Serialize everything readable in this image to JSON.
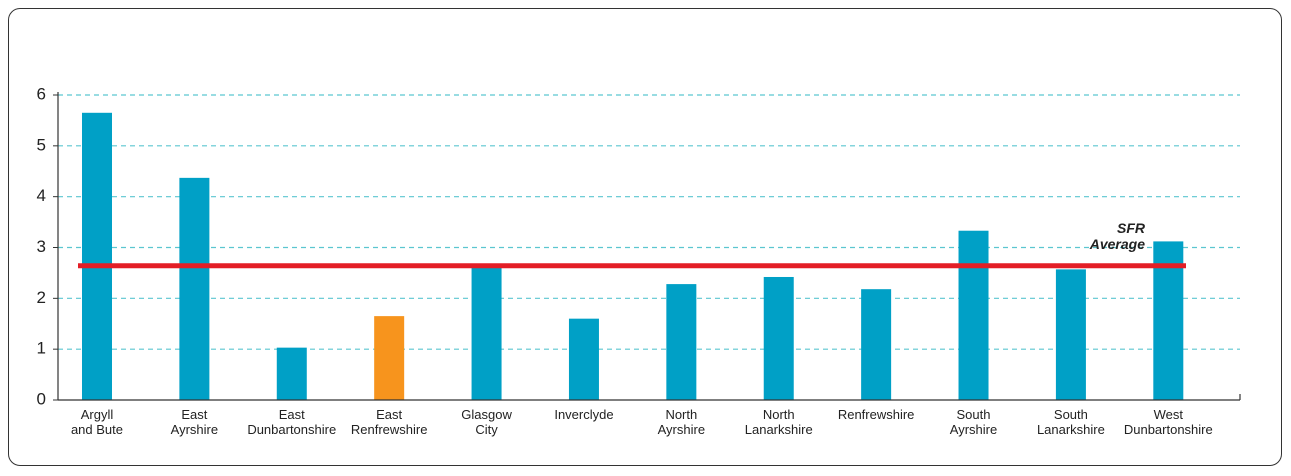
{
  "chart_data": {
    "type": "bar",
    "categories": [
      "Argyll\nand Bute",
      "East\nAyrshire",
      "East\nDunbartonshire",
      "East\nRenfrewshire",
      "Glasgow\nCity",
      "Inverclyde",
      "North\nAyrshire",
      "North\nLanarkshire",
      "Renfrewshire",
      "South\nAyrshire",
      "South\nLanarkshire",
      "West\nDunbartonshire"
    ],
    "values": [
      5.65,
      4.37,
      1.03,
      1.65,
      2.65,
      1.6,
      2.28,
      2.42,
      2.18,
      3.33,
      2.57,
      3.12
    ],
    "colors": [
      "#00a0c6",
      "#00a0c6",
      "#00a0c6",
      "#f7941d",
      "#00a0c6",
      "#00a0c6",
      "#00a0c6",
      "#00a0c6",
      "#00a0c6",
      "#00a0c6",
      "#00a0c6",
      "#00a0c6"
    ],
    "ylim": [
      0,
      6
    ],
    "yticks": [
      0,
      1,
      2,
      3,
      4,
      5,
      6
    ],
    "grid": true,
    "average": 2.64,
    "average_color": "#e31e26",
    "average_label": "SFR\nAverage"
  }
}
